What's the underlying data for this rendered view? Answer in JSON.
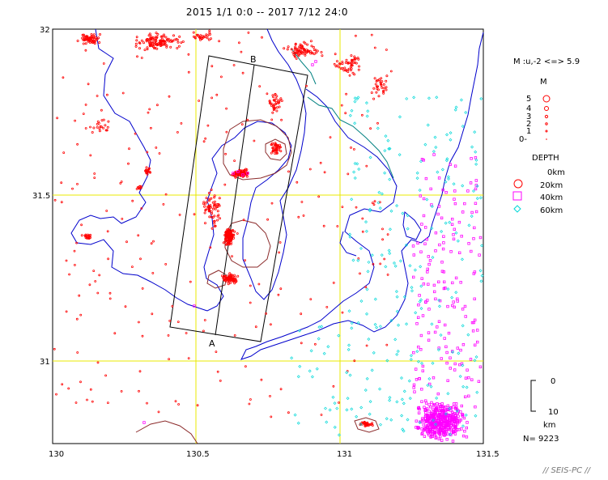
{
  "title": "2015 1/1 0:0 -- 2017 7/12 24:0",
  "axes": {
    "lon_ticks": [
      "130",
      "130.5",
      "131",
      "131.5"
    ],
    "lat_ticks": [
      "32",
      "31.5",
      "31"
    ]
  },
  "profile": {
    "label_a": "A",
    "label_b": "B"
  },
  "legend": {
    "mag_header": "M :u,-2 <=> 5.9",
    "m_title": "M",
    "m_labels": [
      "5",
      "4",
      "3",
      "2",
      "1",
      "0-"
    ],
    "depth_title": "DEPTH",
    "depth_labels": [
      "0km",
      "20km",
      "40km",
      "60km"
    ],
    "scale_top": "0",
    "scale_bottom": "10",
    "scale_unit": "km",
    "count": "N= 9223",
    "colors": {
      "shallow": "#ff0000",
      "mid": "#ff00ff",
      "deep": "#00d8d8",
      "coast": "#0000cc",
      "river": "#008080",
      "grid": "#e8e800",
      "caldera": "#8b2a2a"
    }
  },
  "footer": "// SEIS-PC //",
  "chart_data": {
    "type": "scatter",
    "title": "2015 1/1 0:0 -- 2017 7/12 24:0",
    "xlim": [
      130,
      131.5
    ],
    "ylim": [
      30.75,
      32
    ],
    "grid": true,
    "total_events": 9223,
    "magnitude_range": "M :u,-2 <=> 5.9",
    "series": [
      {
        "name": "0km",
        "color": "#ff0000"
      },
      {
        "name": "20km",
        "color": "#ff00ff"
      },
      {
        "name": "40km",
        "color": "#ff00ff"
      },
      {
        "name": "60km",
        "color": "#00d8d8"
      }
    ],
    "profile_line": {
      "A": [
        130.56,
        31.08
      ],
      "B": [
        130.71,
        31.92
      ]
    }
  }
}
